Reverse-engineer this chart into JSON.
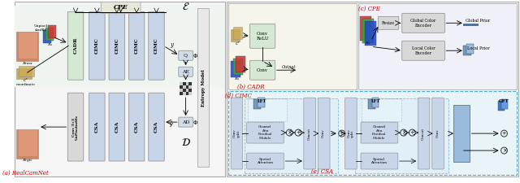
{
  "bg_color": "#ffffff",
  "left_panel": {
    "cimc_color": "#c8d4e8",
    "cadr_color": "#d4e8d4",
    "csa_color": "#c8d4e8",
    "conv_color": "#d8d8d8",
    "q_ae_ad_color": "#d0dce8",
    "label_a": "(a) RealCamNet",
    "label_a_color": "#cc0000"
  },
  "right_top_left": {
    "conv_relu_color": "#d4e8d4",
    "conv_color": "#d4e8d4",
    "label_b": "(b) CADR",
    "label_b_color": "#cc0000"
  },
  "right_top_right": {
    "resize_color": "#d8d8d8",
    "global_enc_color": "#d8d8d8",
    "local_enc_color": "#d8d8d8",
    "label_c": "(c) CPE",
    "label_c_color": "#cc0000"
  },
  "right_bottom": {
    "bg": "#e8f4f8",
    "block_color": "#c8d4e8",
    "label_d": "(d) CIMC",
    "label_d_color": "#cc0000",
    "label_e": "(e) CSA",
    "label_e_color": "#cc0000"
  }
}
